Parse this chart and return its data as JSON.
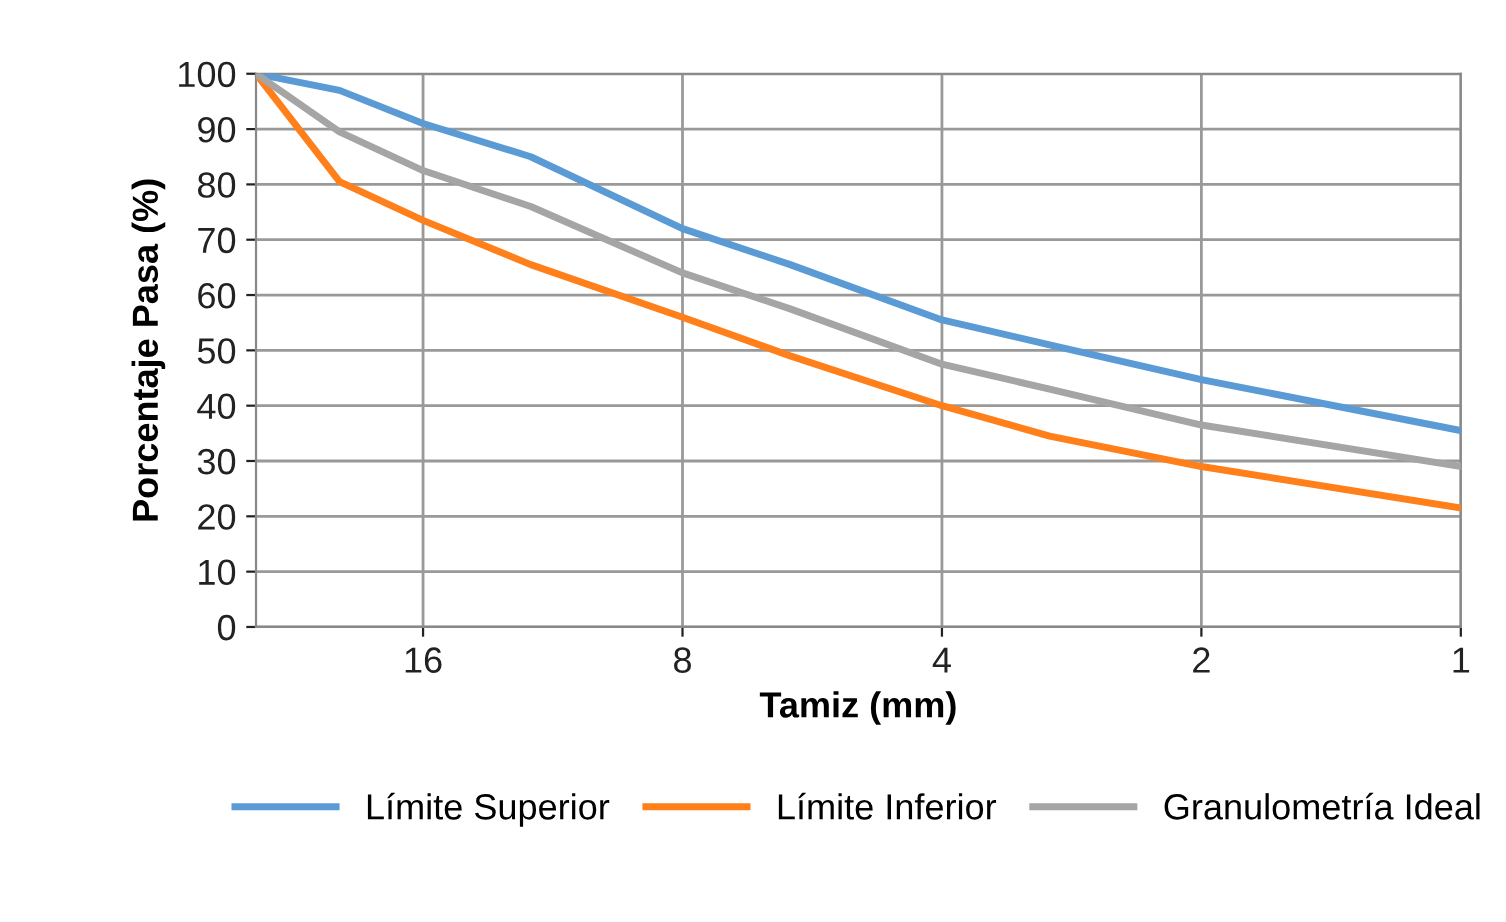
{
  "chart_data": {
    "type": "line",
    "xlabel": "Tamiz (mm)",
    "ylabel": "Porcentaje Pasa (%)",
    "x": [
      25,
      20,
      16,
      12,
      8,
      6,
      4,
      3,
      2,
      1
    ],
    "series": [
      {
        "name": "Límite Superior",
        "color": "#5b9bd5",
        "values": [
          100,
          97,
          91,
          85,
          72,
          65.5,
          55.5,
          51,
          44.7,
          35.5
        ]
      },
      {
        "name": "Límite Inferior",
        "color": "#ff7f1a",
        "values": [
          100,
          80.5,
          73.5,
          65.5,
          56,
          49,
          40,
          34.5,
          29,
          21.5
        ]
      },
      {
        "name": "Granulometría Ideal",
        "color": "#a5a5a5",
        "values": [
          100,
          89.5,
          82.5,
          76,
          64,
          57.5,
          47.5,
          43,
          36.5,
          29
        ]
      }
    ],
    "log": "x",
    "xlim": [
      25,
      1
    ],
    "xticks": [
      16,
      8,
      4,
      2,
      1
    ],
    "ylim": [
      0,
      100
    ],
    "yticks": [
      0,
      10,
      20,
      30,
      40,
      50,
      60,
      70,
      80,
      90,
      100
    ],
    "grid": true,
    "legend": "bottom",
    "marker": "none",
    "line_style": "solid"
  }
}
